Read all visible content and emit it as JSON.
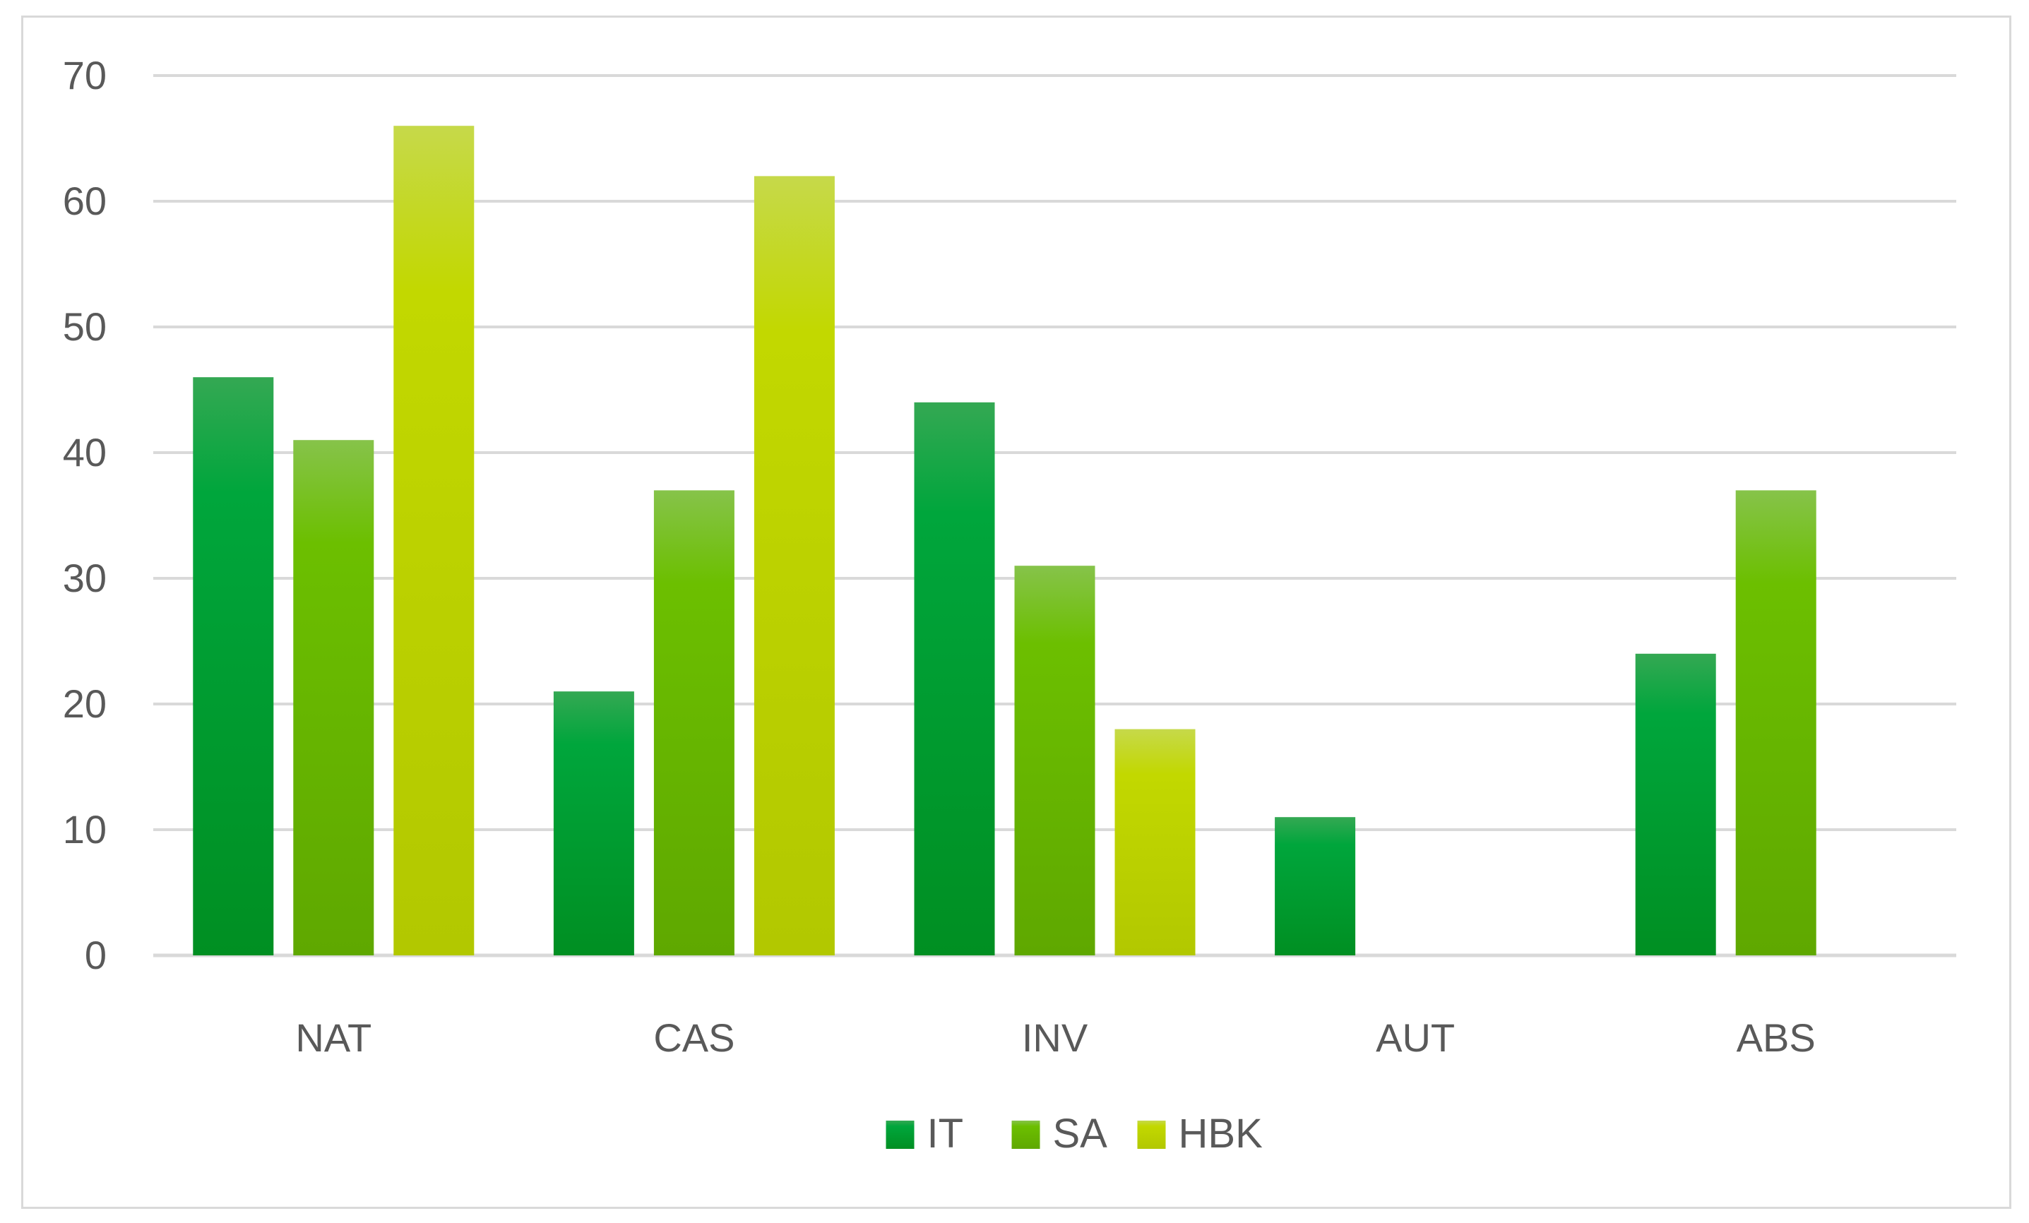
{
  "chart_data": {
    "type": "bar",
    "title": "",
    "xlabel": "",
    "ylabel": "",
    "categories": [
      "NAT",
      "CAS",
      "INV",
      "AUT",
      "ABS"
    ],
    "series": [
      {
        "name": "IT",
        "values": [
          46,
          21,
          44,
          11,
          24
        ],
        "color_top": "#34a853",
        "color_mid": "#00a63c",
        "color_bottom": "#008f22"
      },
      {
        "name": "SA",
        "values": [
          41,
          37,
          31,
          0,
          37
        ],
        "color_top": "#86c34a",
        "color_mid": "#6cbf00",
        "color_bottom": "#5fa800"
      },
      {
        "name": "HBK",
        "values": [
          66,
          62,
          18,
          0,
          0
        ],
        "color_top": "#c6d94a",
        "color_mid": "#c2d800",
        "color_bottom": "#b2c800"
      }
    ],
    "ylim": [
      0,
      70
    ],
    "yticks": [
      "0",
      "10",
      "20",
      "30",
      "40",
      "50",
      "60",
      "70"
    ],
    "grid": true,
    "legend_position": "bottom-center",
    "colors": {
      "grid": "#d9d9d9",
      "axis_text": "#595959",
      "border": "#d9d9d9"
    }
  }
}
